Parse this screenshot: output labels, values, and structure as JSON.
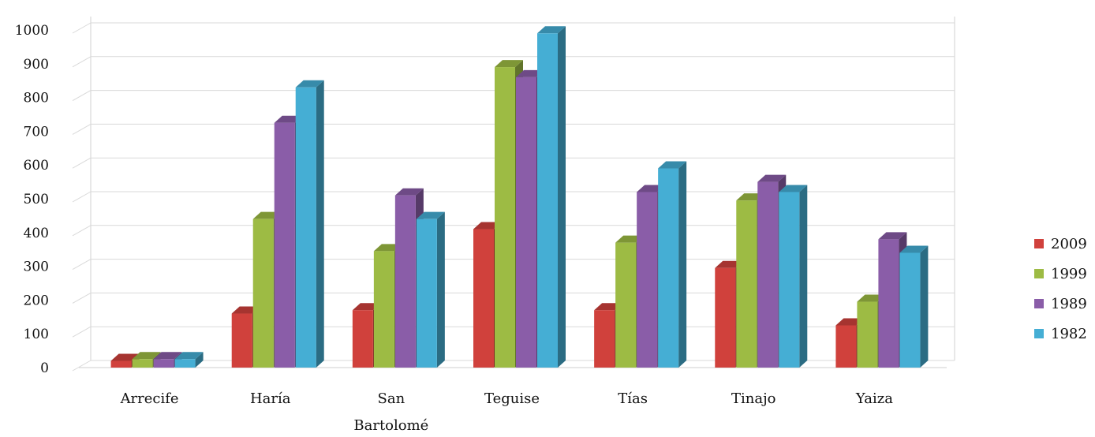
{
  "chart_data": {
    "type": "bar",
    "categories": [
      "Arrecife",
      "Haría",
      "San Bartolomé",
      "Teguise",
      "Tías",
      "Tinajo",
      "Yaiza"
    ],
    "category_lines": [
      [
        "Arrecife"
      ],
      [
        "Haría"
      ],
      [
        "San",
        "Bartolomé"
      ],
      [
        "Teguise"
      ],
      [
        "Tías"
      ],
      [
        "Tinajo"
      ],
      [
        "Yaiza"
      ]
    ],
    "series": [
      {
        "name": "2009",
        "color": "#d0413c",
        "values": [
          20,
          160,
          170,
          410,
          170,
          295,
          125
        ]
      },
      {
        "name": "1999",
        "color": "#9dbb44",
        "values": [
          25,
          440,
          345,
          890,
          370,
          495,
          195
        ]
      },
      {
        "name": "1989",
        "color": "#8a5da8",
        "values": [
          25,
          725,
          510,
          860,
          520,
          550,
          380
        ]
      },
      {
        "name": "1982",
        "color": "#45aed4",
        "values": [
          25,
          830,
          440,
          990,
          590,
          520,
          340
        ]
      }
    ],
    "ylim": [
      0,
      1000
    ],
    "yticks": [
      "0",
      "100",
      "200",
      "300",
      "400",
      "500",
      "600",
      "700",
      "800",
      "900",
      "1000"
    ],
    "grid": true,
    "legend": "right",
    "legend_order": [
      "2009",
      "1999",
      "1989",
      "1982"
    ]
  }
}
